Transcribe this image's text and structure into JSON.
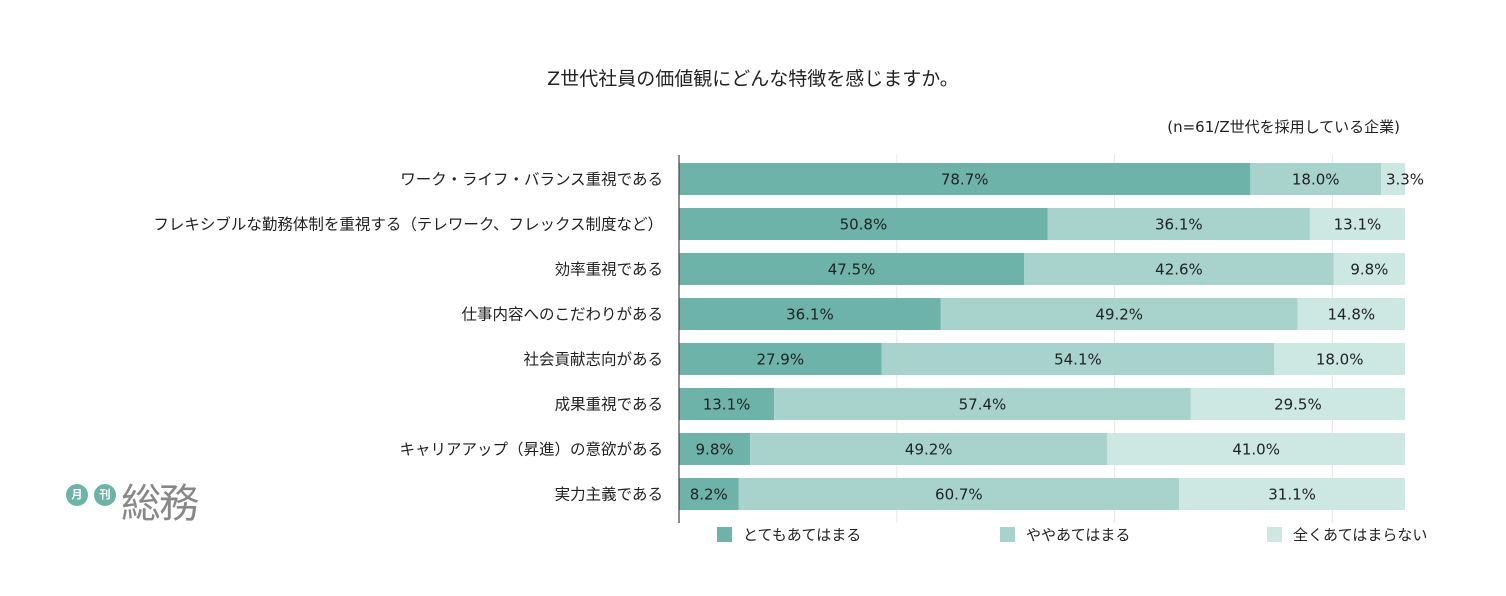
{
  "title": "Z世代社員の価値観にどんな特徴を感じますか。",
  "sample_note": "(n=61/Z世代を採用している企業)",
  "logo": {
    "small1": "月",
    "small2": "刊",
    "main": "総務"
  },
  "colors": {
    "strong": "#6db3a9",
    "medium": "#a7d3cc",
    "light": "#cde7e3",
    "axis": "#444444",
    "grid": "#e6e6e6"
  },
  "chart_data": {
    "type": "bar",
    "orientation": "horizontal",
    "stacked": "100%",
    "title": "Z世代社員の価値観にどんな特徴を感じますか。",
    "note": "(n=61/Z世代を採用している企業)",
    "grid": true,
    "legend_position": "bottom",
    "unit": "%",
    "categories": [
      "ワーク・ライフ・バランス重視である",
      "フレキシブルな勤務体制を重視する（テレワーク、フレックス制度など）",
      "効率重視である",
      "仕事内容へのこだわりがある",
      "社会貢献志向がある",
      "成果重視である",
      "キャリアアップ（昇進）の意欲がある",
      "実力主義である"
    ],
    "series": [
      {
        "name": "とてもあてはまる",
        "color": "#6db3a9",
        "values": [
          78.7,
          50.8,
          47.5,
          36.1,
          27.9,
          13.1,
          9.8,
          8.2
        ],
        "labels": [
          "78.7%",
          "50.8%",
          "47.5%",
          "36.1%",
          "27.9%",
          "13.1%",
          "9.8%",
          "8.2%"
        ]
      },
      {
        "name": "ややあてはまる",
        "color": "#a7d3cc",
        "values": [
          18.0,
          36.1,
          42.6,
          49.2,
          54.1,
          57.4,
          49.2,
          60.7
        ],
        "labels": [
          "18.0%",
          "36.1%",
          "42.6%",
          "49.2%",
          "54.1%",
          "57.4%",
          "49.2%",
          "60.7%"
        ]
      },
      {
        "name": "全くあてはまらない",
        "color": "#cde7e3",
        "values": [
          3.3,
          13.1,
          9.8,
          14.8,
          18.0,
          29.5,
          41.0,
          31.1
        ],
        "labels": [
          "3.3%",
          "13.1%",
          "9.8%",
          "14.8%",
          "18.0%",
          "29.5%",
          "41.0%",
          "31.1%"
        ]
      }
    ]
  }
}
